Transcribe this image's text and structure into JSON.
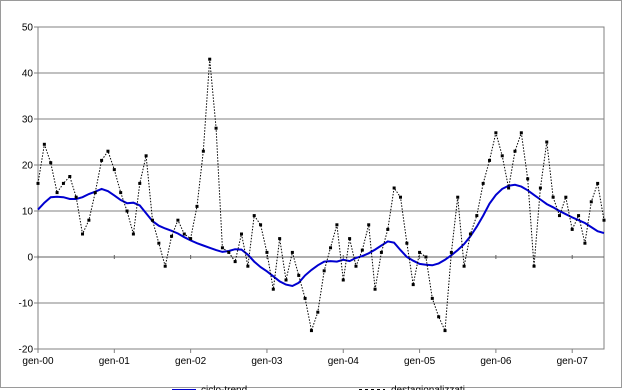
{
  "chart_data": {
    "type": "line",
    "title": "",
    "xlabel": "",
    "ylabel": "",
    "ylim": [
      -20,
      50
    ],
    "yticks": [
      -20,
      -10,
      0,
      10,
      20,
      30,
      40,
      50
    ],
    "xticks": [
      "gen-00",
      "gen-01",
      "gen-02",
      "gen-03",
      "gen-04",
      "gen-05",
      "gen-06",
      "gen-07"
    ],
    "x_start": "gen-00",
    "months": 90,
    "grid": true,
    "legend_position": "bottom",
    "series": [
      {
        "name": "ciclo-trend",
        "color": "#0000d0",
        "style": "solid",
        "values": [
          10.3,
          11.8,
          13.0,
          13.1,
          13.0,
          12.6,
          12.6,
          13.0,
          13.7,
          14.2,
          14.8,
          14.3,
          13.4,
          12.4,
          11.7,
          11.8,
          11.2,
          9.5,
          7.8,
          6.8,
          6.2,
          5.7,
          5.1,
          4.3,
          3.6,
          3.0,
          2.5,
          2.0,
          1.5,
          1.1,
          1.3,
          1.7,
          1.6,
          0.5,
          -1.0,
          -2.2,
          -3.1,
          -4.2,
          -5.3,
          -6.0,
          -6.3,
          -5.6,
          -4.0,
          -2.8,
          -1.8,
          -1.0,
          -0.9,
          -1.0,
          -0.6,
          -0.9,
          -0.2,
          0.2,
          0.8,
          1.6,
          2.5,
          3.4,
          3.1,
          1.5,
          0.0,
          -0.8,
          -1.5,
          -1.7,
          -1.8,
          -1.4,
          -0.6,
          0.4,
          1.5,
          2.8,
          4.5,
          6.6,
          9.0,
          11.6,
          13.5,
          14.8,
          15.5,
          15.7,
          15.3,
          14.5,
          13.5,
          12.5,
          11.5,
          10.8,
          10.0,
          9.3,
          8.6,
          8.0,
          7.4,
          6.5,
          5.6,
          5.2
        ]
      },
      {
        "name": "destagionalizzati",
        "color": "#000000",
        "style": "dotted",
        "values": [
          16.0,
          24.5,
          20.5,
          14.0,
          16.0,
          17.5,
          13.0,
          5.0,
          8.0,
          14.0,
          21.0,
          23.0,
          19.0,
          14.0,
          10.0,
          5.0,
          16.0,
          22.0,
          8.0,
          3.0,
          -2.0,
          4.5,
          8.0,
          5.0,
          4.0,
          11.0,
          23.0,
          43.0,
          28.0,
          2.0,
          1.0,
          -1.0,
          5.0,
          -2.0,
          9.0,
          7.0,
          1.0,
          -7.0,
          4.0,
          -5.0,
          1.0,
          -4.0,
          -9.0,
          -16.0,
          -12.0,
          -3.0,
          2.0,
          7.0,
          -5.0,
          4.0,
          -2.0,
          1.5,
          7.0,
          -7.0,
          1.0,
          6.0,
          15.0,
          13.0,
          3.0,
          -6.0,
          1.0,
          0.0,
          -9.0,
          -13.0,
          -16.0,
          1.0,
          13.0,
          -2.0,
          5.0,
          9.0,
          16.0,
          21.0,
          27.0,
          22.0,
          15.0,
          23.0,
          27.0,
          17.0,
          -2.0,
          15.0,
          25.0,
          13.0,
          9.0,
          13.0,
          6.0,
          9.0,
          3.0,
          12.0,
          16.0,
          8.0
        ]
      }
    ]
  }
}
